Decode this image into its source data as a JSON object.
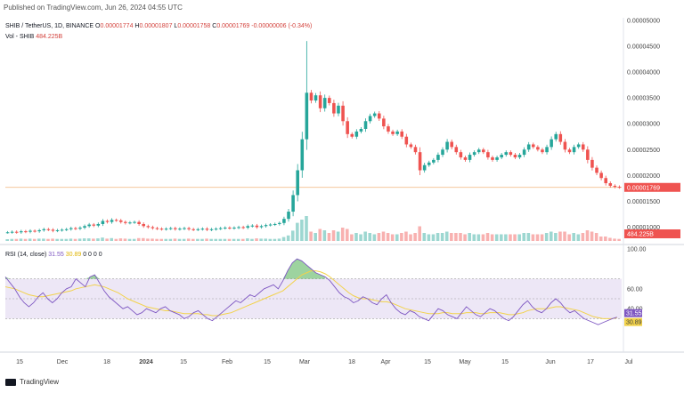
{
  "header": {
    "published": "Published on TradingView.com, Jun 26, 2024 04:55 UTC",
    "symbol": "SHIB / TetherUS, 1D, BINANCE",
    "open_label": "O",
    "open": "0.00001774",
    "high_label": "H",
    "high": "0.00001807",
    "low_label": "L",
    "low": "0.00001758",
    "close_label": "C",
    "close": "0.00001769",
    "change": "-0.00000006 (-0.34%)",
    "vol_label": "Vol - SHIB",
    "vol_value": "484.225B",
    "rsi_label": "RSI (14, close)",
    "rsi_value": "31.55",
    "rsi_ma_value": "30.89",
    "rsi_extra": "0 0 0 0"
  },
  "footer": {
    "brand": "TradingView"
  },
  "colors": {
    "up": "#26a69a",
    "down": "#ef5350",
    "rsi": "#7e57c2",
    "rsi_ma": "#f2d24a",
    "band": "#ede7f6"
  },
  "chart_data": [
    {
      "type": "candlestick",
      "title": "SHIB / TetherUS, 1D, BINANCE",
      "y_tick_labels": [
        "0.00005000",
        "0.00004500",
        "0.00004000",
        "0.00003500",
        "0.00003000",
        "0.00002500",
        "0.00002000",
        "0.00001500",
        "0.00001000"
      ],
      "ylim": [
        7.5e-06,
        5.05e-05
      ],
      "current_price": "0.00001769",
      "x_tick_labels": [
        "15",
        "Dec",
        "18",
        "2024",
        "15",
        "Feb",
        "15",
        "Mar",
        "18",
        "Apr",
        "15",
        "May",
        "15",
        "Jun",
        "17",
        "Jul"
      ],
      "close_series": [
        9.0,
        9.1,
        9.0,
        9.2,
        9.1,
        9.3,
        9.2,
        9.4,
        9.6,
        9.5,
        9.3,
        9.4,
        9.5,
        9.6,
        9.8,
        9.7,
        9.9,
        10.2,
        10.5,
        10.3,
        10.6,
        11.2,
        11.0,
        11.4,
        11.3,
        11.0,
        10.8,
        10.9,
        11.0,
        10.6,
        10.2,
        10.0,
        9.8,
        9.7,
        9.6,
        9.7,
        9.8,
        9.6,
        9.7,
        9.8,
        9.6,
        9.5,
        9.6,
        9.7,
        9.5,
        9.6,
        9.7,
        9.8,
        9.9,
        9.8,
        9.9,
        10.0,
        9.9,
        10.2,
        10.3,
        10.0,
        10.2,
        10.4,
        10.5,
        10.6,
        10.8,
        11.6,
        13.0,
        16.2,
        21.0,
        27.0,
        36.0,
        34.5,
        35.5,
        33.0,
        35.0,
        34.0,
        32.0,
        33.5,
        30.5,
        28.0,
        27.5,
        28.5,
        29.0,
        30.5,
        31.5,
        32.0,
        31.0,
        29.5,
        28.5,
        28.0,
        28.5,
        27.5,
        26.0,
        25.5,
        24.5,
        21.0,
        22.0,
        22.5,
        23.0,
        24.0,
        25.0,
        26.5,
        25.5,
        24.5,
        23.5,
        23.0,
        24.0,
        24.5,
        25.0,
        24.5,
        23.5,
        23.0,
        23.5,
        24.0,
        24.5,
        24.0,
        23.5,
        24.0,
        25.0,
        26.0,
        25.5,
        25.0,
        24.5,
        25.5,
        27.0,
        28.0,
        26.5,
        25.0,
        24.5,
        25.5,
        26.0,
        25.0,
        23.0,
        21.5,
        20.5,
        19.5,
        18.5,
        18.0,
        17.8,
        17.7
      ],
      "volume_note": "Vol - SHIB 484.225B"
    },
    {
      "type": "line",
      "title": "RSI (14, close)",
      "y_tick_labels": [
        "100.00",
        "60.00",
        "40.00"
      ],
      "ylim": [
        0,
        100
      ],
      "band": [
        30,
        70
      ],
      "series": [
        {
          "name": "RSI",
          "values": [
            72,
            66,
            60,
            52,
            46,
            42,
            46,
            52,
            56,
            50,
            46,
            50,
            56,
            60,
            62,
            70,
            66,
            62,
            72,
            74,
            66,
            58,
            52,
            48,
            44,
            40,
            42,
            38,
            34,
            36,
            40,
            38,
            36,
            40,
            42,
            38,
            36,
            34,
            30,
            32,
            36,
            38,
            34,
            30,
            28,
            32,
            36,
            40,
            44,
            48,
            46,
            50,
            54,
            52,
            56,
            60,
            62,
            64,
            60,
            68,
            78,
            86,
            90,
            88,
            84,
            80,
            76,
            74,
            72,
            68,
            62,
            56,
            52,
            50,
            46,
            48,
            52,
            50,
            46,
            44,
            50,
            54,
            46,
            40,
            36,
            34,
            38,
            36,
            32,
            30,
            28,
            34,
            40,
            38,
            34,
            32,
            30,
            36,
            42,
            38,
            34,
            32,
            36,
            40,
            38,
            34,
            30,
            28,
            32,
            38,
            44,
            48,
            42,
            38,
            36,
            40,
            46,
            50,
            46,
            40,
            36,
            38,
            34,
            30,
            28,
            26,
            24,
            26,
            28,
            30,
            31.55
          ]
        },
        {
          "name": "RSI-based MA",
          "values": [
            62,
            61,
            60,
            58,
            56,
            54,
            53,
            52,
            52,
            53,
            54,
            55,
            56,
            57,
            58,
            60,
            61,
            62,
            63,
            64,
            63,
            62,
            60,
            58,
            56,
            53,
            50,
            48,
            46,
            44,
            42,
            41,
            40,
            39,
            38,
            38,
            37,
            36,
            35,
            35,
            35,
            35,
            34,
            34,
            33,
            33,
            34,
            35,
            36,
            38,
            40,
            42,
            44,
            46,
            48,
            50,
            52,
            54,
            56,
            58,
            62,
            66,
            70,
            74,
            76,
            78,
            78,
            77,
            75,
            72,
            68,
            64,
            60,
            56,
            53,
            51,
            50,
            50,
            49,
            48,
            47,
            47,
            46,
            44,
            42,
            40,
            39,
            38,
            37,
            36,
            35,
            35,
            35,
            36,
            36,
            35,
            35,
            35,
            36,
            36,
            36,
            35,
            35,
            36,
            36,
            36,
            35,
            34,
            34,
            35,
            36,
            38,
            39,
            40,
            40,
            40,
            41,
            42,
            42,
            41,
            40,
            39,
            38,
            36,
            34,
            32,
            31,
            30,
            30,
            30,
            30.89
          ]
        }
      ]
    }
  ]
}
